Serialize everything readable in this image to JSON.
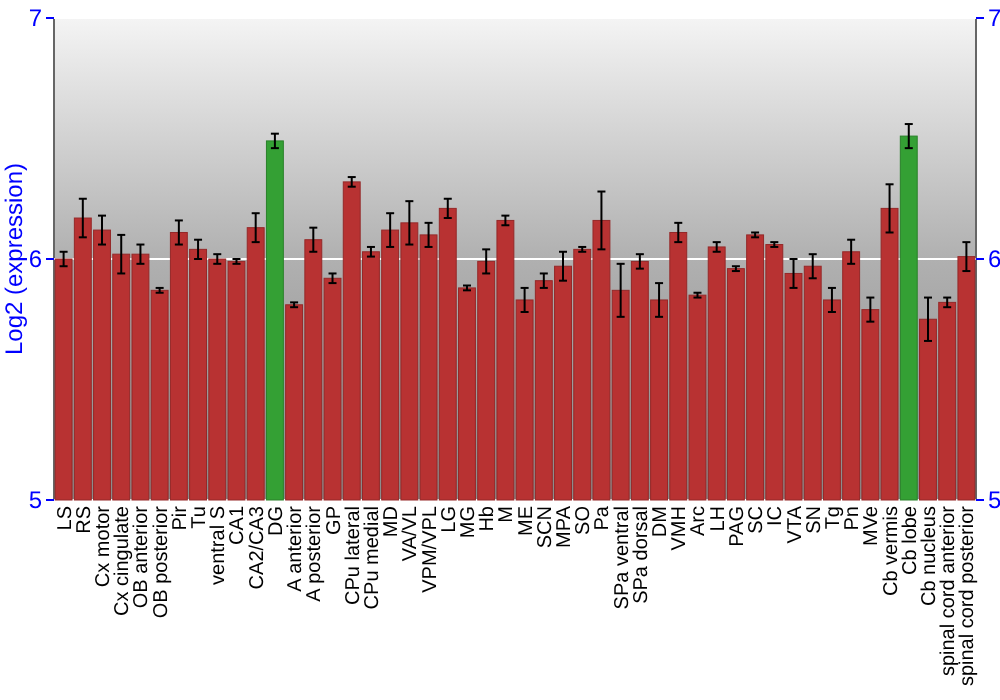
{
  "chart_data": {
    "type": "bar",
    "ylabel": "Log2 (expression)",
    "categories": [
      "LS",
      "RS",
      "Cx motor",
      "Cx cingulate",
      "OB anterior",
      "OB posterior",
      "Pir",
      "Tu",
      "ventral S",
      "CA1",
      "CA2/CA3",
      "DG",
      "A anterior",
      "A posterior",
      "GP",
      "CPu lateral",
      "CPu medial",
      "MD",
      "VA/VL",
      "VPM/VPL",
      "LG",
      "MG",
      "Hb",
      "M",
      "ME",
      "SCN",
      "MPA",
      "SO",
      "Pa",
      "SPa ventral",
      "SPa dorsal",
      "DM",
      "VMH",
      "Arc",
      "LH",
      "PAG",
      "SC",
      "IC",
      "VTA",
      "SN",
      "Tg",
      "Pn",
      "MVe",
      "Cb vermis",
      "Cb lobe",
      "Cb nucleus",
      "spinal cord anterior",
      "spinal cord posterior"
    ],
    "values": [
      6.0,
      6.17,
      6.12,
      6.02,
      6.02,
      5.87,
      6.11,
      6.04,
      6.0,
      5.99,
      6.13,
      6.49,
      5.81,
      6.08,
      5.92,
      6.32,
      6.03,
      6.12,
      6.15,
      6.1,
      6.21,
      5.88,
      5.99,
      6.16,
      5.83,
      5.91,
      5.97,
      6.04,
      6.16,
      5.87,
      5.99,
      5.83,
      6.11,
      5.85,
      6.05,
      5.96,
      6.1,
      6.06,
      5.94,
      5.97,
      5.83,
      6.03,
      5.79,
      6.21,
      6.51,
      5.75,
      5.82,
      6.01
    ],
    "errors": [
      0.03,
      0.08,
      0.06,
      0.08,
      0.04,
      0.01,
      0.05,
      0.04,
      0.02,
      0.01,
      0.06,
      0.03,
      0.01,
      0.05,
      0.02,
      0.02,
      0.02,
      0.07,
      0.09,
      0.05,
      0.04,
      0.01,
      0.05,
      0.02,
      0.05,
      0.03,
      0.06,
      0.01,
      0.12,
      0.11,
      0.03,
      0.07,
      0.04,
      0.01,
      0.02,
      0.01,
      0.01,
      0.01,
      0.06,
      0.05,
      0.05,
      0.05,
      0.05,
      0.1,
      0.05,
      0.09,
      0.02,
      0.06
    ],
    "colors": [
      "#b83232",
      "#b83232",
      "#b83232",
      "#b83232",
      "#b83232",
      "#b83232",
      "#b83232",
      "#b83232",
      "#b83232",
      "#b83232",
      "#b83232",
      "#34a034",
      "#b83232",
      "#b83232",
      "#b83232",
      "#b83232",
      "#b83232",
      "#b83232",
      "#b83232",
      "#b83232",
      "#b83232",
      "#b83232",
      "#b83232",
      "#b83232",
      "#b83232",
      "#b83232",
      "#b83232",
      "#b83232",
      "#b83232",
      "#b83232",
      "#b83232",
      "#b83232",
      "#b83232",
      "#b83232",
      "#b83232",
      "#b83232",
      "#b83232",
      "#b83232",
      "#b83232",
      "#b83232",
      "#b83232",
      "#b83232",
      "#b83232",
      "#b83232",
      "#34a034",
      "#b83232",
      "#b83232",
      "#b83232"
    ],
    "ylim": [
      5,
      7
    ],
    "yticks": [
      5,
      6,
      7
    ],
    "y2lim": [
      5,
      7
    ],
    "y2ticks": [
      5,
      6,
      7
    ],
    "grid": "y"
  }
}
